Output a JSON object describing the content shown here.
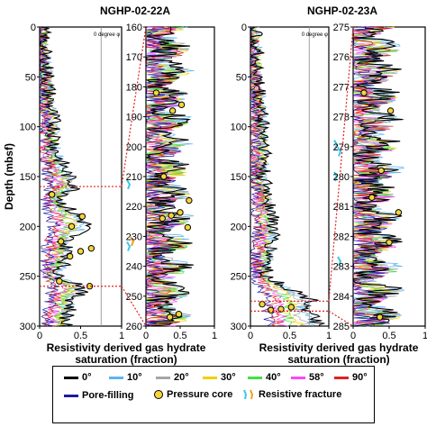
{
  "chart_data": [
    {
      "type": "line",
      "panel": "NGHP-02-22A full depth",
      "title": "NGHP-02-22A",
      "ylabel": "Depth (mbsf)",
      "xlabel": "Resistivity derived gas hydrate saturation (fraction)",
      "xlim": [
        0,
        1
      ],
      "ylim": [
        300,
        0
      ],
      "xticks": [
        "0",
        "0.5",
        "1"
      ],
      "yticks": [
        "0",
        "50",
        "100",
        "150",
        "200",
        "250",
        "300"
      ],
      "annotation": "0 degree φ",
      "series": [
        {
          "name": "0°",
          "x": [
            0.03,
            0.05,
            0.1,
            0.12,
            0.18,
            0.2,
            0.35,
            0.45,
            0.25,
            0.6,
            0.3,
            0.35,
            0.2,
            0.55,
            0.4,
            0.3
          ],
          "y": [
            0,
            25,
            50,
            75,
            100,
            125,
            150,
            160,
            175,
            200,
            215,
            230,
            250,
            260,
            275,
            300
          ]
        }
      ],
      "pressure_core_depths": [
        168,
        190,
        200,
        215,
        222,
        225,
        230,
        255,
        260
      ],
      "resistive_fracture_depths": [
        158,
        215,
        220
      ]
    },
    {
      "type": "line",
      "panel": "NGHP-02-22A zoom",
      "xlim": [
        0,
        1
      ],
      "ylim": [
        260,
        160
      ],
      "xticks": [
        "0",
        "0.5",
        "1"
      ],
      "yticks": [
        "160",
        "170",
        "180",
        "190",
        "200",
        "210",
        "220",
        "230",
        "240",
        "250",
        "260"
      ],
      "pressure_core_depths": [
        182,
        186,
        188,
        210,
        218,
        222,
        223,
        224,
        227,
        256,
        257
      ]
    },
    {
      "type": "line",
      "panel": "NGHP-02-23A full depth",
      "title": "NGHP-02-23A",
      "xlabel": "Resistivity derived gas hydrate saturation (fraction)",
      "xlim": [
        0,
        1
      ],
      "ylim": [
        300,
        0
      ],
      "xticks": [
        "0",
        "0.5",
        "1"
      ],
      "yticks": [
        "0",
        "50",
        "100",
        "150",
        "200",
        "250",
        "300"
      ],
      "annotation": "0 degree φ",
      "series": [
        {
          "name": "0°",
          "x": [
            0.05,
            0.08,
            0.1,
            0.15,
            0.2,
            0.15,
            0.25,
            0.3,
            0.2,
            0.8,
            0.7,
            0.85
          ],
          "y": [
            0,
            30,
            60,
            90,
            120,
            150,
            175,
            200,
            250,
            275,
            285,
            295
          ]
        }
      ],
      "pressure_core_depths": [
        278,
        281,
        283,
        284
      ],
      "resistive_fracture_depths": [
        118,
        125,
        150,
        235
      ]
    },
    {
      "type": "line",
      "panel": "NGHP-02-23A zoom",
      "xlim": [
        0,
        1
      ],
      "ylim": [
        285,
        275
      ],
      "xticks": [
        "0",
        "0.5",
        "1"
      ],
      "yticks": [
        "275",
        "276",
        "277",
        "278",
        "279",
        "280",
        "281",
        "282",
        "283",
        "284",
        "285"
      ],
      "pressure_core_depths": [
        277.2,
        277.8,
        279.8,
        280.7,
        281.2,
        282.2,
        284.7
      ]
    }
  ],
  "legend": {
    "items": [
      {
        "label": "0°",
        "color": "#000000",
        "kind": "line"
      },
      {
        "label": "10°",
        "color": "#5ab4f0",
        "kind": "line"
      },
      {
        "label": "20°",
        "color": "#a6a6a6",
        "kind": "line"
      },
      {
        "label": "30°",
        "color": "#f0d000",
        "kind": "line"
      },
      {
        "label": "40°",
        "color": "#44e044",
        "kind": "line"
      },
      {
        "label": "58°",
        "color": "#ff44ff",
        "kind": "line"
      },
      {
        "label": "90°",
        "color": "#e02020",
        "kind": "line"
      },
      {
        "label": "Pore-filling",
        "color": "#1a1aa8",
        "kind": "line"
      },
      {
        "label": "Pressure core",
        "color": "#f5d53a",
        "kind": "dot"
      },
      {
        "label": "Resistive fracture",
        "color": "#39c8e8",
        "kind": "fracture"
      }
    ]
  },
  "colors": {
    "zoom_connector": "#e02020",
    "fracture_alt": "#f0a020"
  }
}
